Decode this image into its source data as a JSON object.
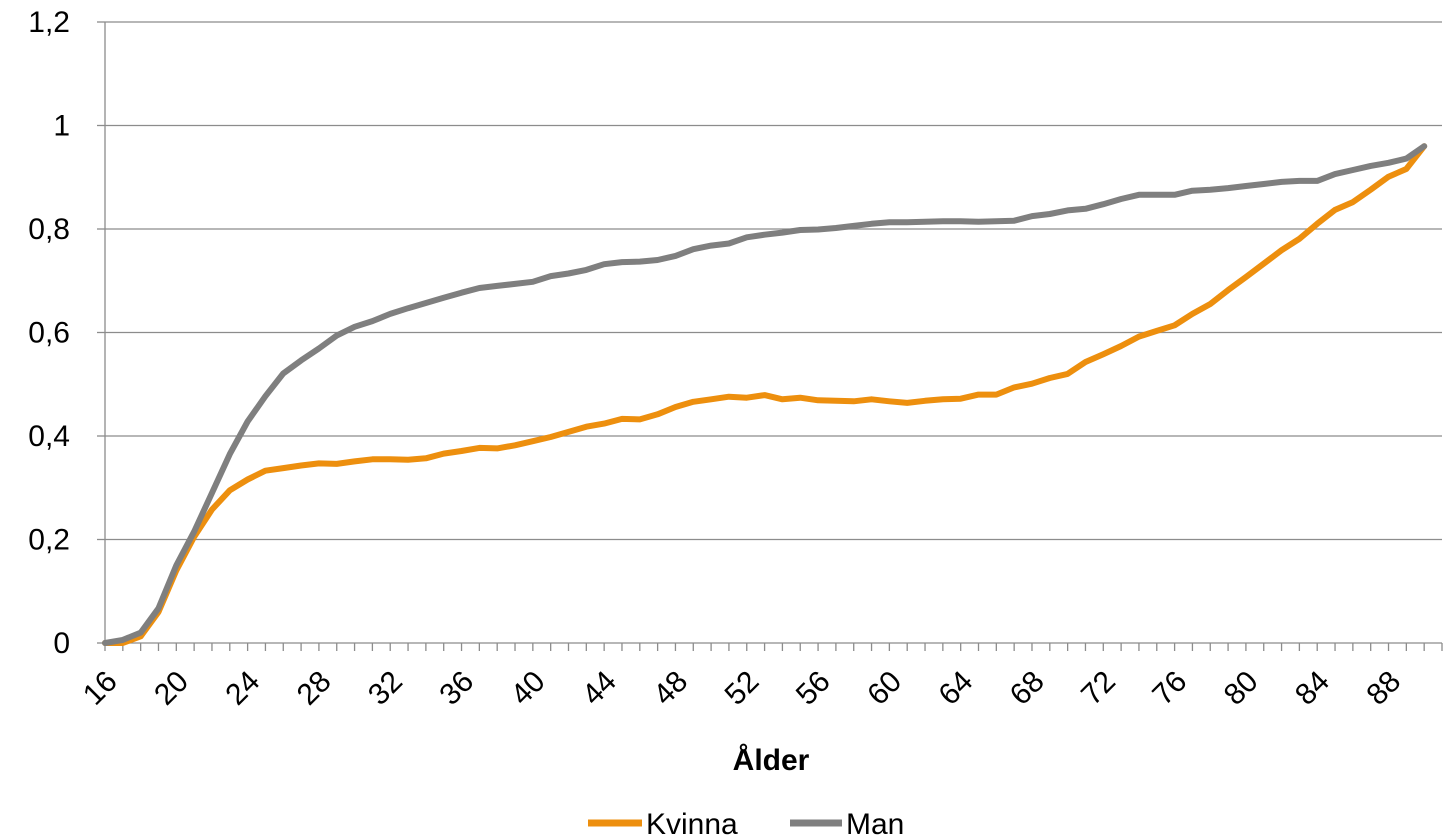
{
  "chart_data": {
    "type": "line",
    "title": "",
    "xlabel": "Ålder",
    "ylabel": "",
    "xlim": [
      16,
      91
    ],
    "ylim": [
      0,
      1.2
    ],
    "yticks": [
      "0",
      "0,2",
      "0,4",
      "0,6",
      "0,8",
      "1",
      "1,2"
    ],
    "xticks": [
      "16",
      "20",
      "24",
      "28",
      "32",
      "36",
      "40",
      "44",
      "48",
      "52",
      "56",
      "60",
      "64",
      "68",
      "72",
      "76",
      "80",
      "84",
      "88"
    ],
    "grid": true,
    "legend_position": "bottom",
    "x": [
      16,
      17,
      18,
      19,
      20,
      21,
      22,
      23,
      24,
      25,
      26,
      27,
      28,
      29,
      30,
      31,
      32,
      33,
      34,
      35,
      36,
      37,
      38,
      39,
      40,
      41,
      42,
      43,
      44,
      45,
      46,
      47,
      48,
      49,
      50,
      51,
      52,
      53,
      54,
      55,
      56,
      57,
      58,
      59,
      60,
      61,
      62,
      63,
      64,
      65,
      66,
      67,
      68,
      69,
      70,
      71,
      72,
      73,
      74,
      75,
      76,
      77,
      78,
      79,
      80,
      81,
      82,
      83,
      84,
      85,
      86,
      87,
      88,
      89,
      90
    ],
    "series": [
      {
        "name": "Kvinna",
        "color": "#ED8F0E",
        "values": [
          0.0,
          0.0,
          0.013,
          0.06,
          0.14,
          0.205,
          0.258,
          0.295,
          0.316,
          0.333,
          0.338,
          0.343,
          0.347,
          0.346,
          0.351,
          0.355,
          0.355,
          0.354,
          0.357,
          0.366,
          0.371,
          0.377,
          0.376,
          0.382,
          0.39,
          0.398,
          0.408,
          0.418,
          0.424,
          0.433,
          0.432,
          0.442,
          0.456,
          0.466,
          0.471,
          0.476,
          0.474,
          0.479,
          0.471,
          0.474,
          0.469,
          0.468,
          0.467,
          0.471,
          0.467,
          0.464,
          0.468,
          0.471,
          0.472,
          0.48,
          0.48,
          0.494,
          0.501,
          0.512,
          0.52,
          0.543,
          0.558,
          0.574,
          0.592,
          0.603,
          0.614,
          0.636,
          0.655,
          0.682,
          0.707,
          0.733,
          0.759,
          0.781,
          0.81,
          0.837,
          0.852,
          0.876,
          0.901,
          0.916,
          0.96
        ]
      },
      {
        "name": "Man",
        "color": "#7F7F7F",
        "values": [
          0.0,
          0.006,
          0.02,
          0.067,
          0.15,
          0.215,
          0.29,
          0.365,
          0.428,
          0.477,
          0.521,
          0.546,
          0.569,
          0.594,
          0.611,
          0.622,
          0.636,
          0.647,
          0.657,
          0.667,
          0.677,
          0.686,
          0.69,
          0.694,
          0.698,
          0.709,
          0.714,
          0.721,
          0.732,
          0.736,
          0.737,
          0.74,
          0.748,
          0.761,
          0.768,
          0.772,
          0.784,
          0.789,
          0.793,
          0.798,
          0.799,
          0.802,
          0.806,
          0.81,
          0.813,
          0.813,
          0.814,
          0.815,
          0.815,
          0.814,
          0.815,
          0.816,
          0.825,
          0.829,
          0.836,
          0.839,
          0.848,
          0.858,
          0.866,
          0.866,
          0.866,
          0.874,
          0.876,
          0.879,
          0.883,
          0.887,
          0.891,
          0.893,
          0.893,
          0.906,
          0.914,
          0.922,
          0.928,
          0.936,
          0.96
        ]
      }
    ]
  }
}
